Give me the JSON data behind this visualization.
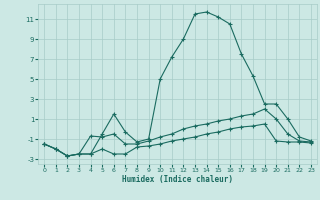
{
  "xlabel": "Humidex (Indice chaleur)",
  "bg_color": "#cce8e4",
  "grid_color": "#a8ccc8",
  "line_color": "#1a6b60",
  "xlim": [
    -0.5,
    23.5
  ],
  "ylim": [
    -3.5,
    12.5
  ],
  "yticks": [
    -3,
    -1,
    1,
    3,
    5,
    7,
    9,
    11
  ],
  "xticks": [
    0,
    1,
    2,
    3,
    4,
    5,
    6,
    7,
    8,
    9,
    10,
    11,
    12,
    13,
    14,
    15,
    16,
    17,
    18,
    19,
    20,
    21,
    22,
    23
  ],
  "line1_x": [
    0,
    1,
    2,
    3,
    4,
    5,
    6,
    7,
    8,
    9,
    10,
    11,
    12,
    13,
    14,
    15,
    16,
    17,
    18,
    19,
    20,
    21,
    22,
    23
  ],
  "line1_y": [
    -1.5,
    -2.0,
    -2.7,
    -2.5,
    -2.5,
    -0.5,
    1.5,
    -0.3,
    -1.3,
    -1.0,
    5.0,
    7.2,
    9.0,
    11.5,
    11.7,
    11.2,
    10.5,
    7.5,
    5.3,
    2.5,
    2.5,
    1.0,
    -0.8,
    -1.2
  ],
  "line2_x": [
    0,
    1,
    2,
    3,
    4,
    5,
    6,
    7,
    8,
    9,
    10,
    11,
    12,
    13,
    14,
    15,
    16,
    17,
    18,
    19,
    20,
    21,
    22,
    23
  ],
  "line2_y": [
    -1.5,
    -2.0,
    -2.7,
    -2.5,
    -0.7,
    -0.8,
    -0.5,
    -1.5,
    -1.5,
    -1.2,
    -0.8,
    -0.5,
    0.0,
    0.3,
    0.5,
    0.8,
    1.0,
    1.3,
    1.5,
    2.0,
    1.0,
    -0.5,
    -1.2,
    -1.3
  ],
  "line3_x": [
    0,
    1,
    2,
    3,
    4,
    5,
    6,
    7,
    8,
    9,
    10,
    11,
    12,
    13,
    14,
    15,
    16,
    17,
    18,
    19,
    20,
    21,
    22,
    23
  ],
  "line3_y": [
    -1.5,
    -2.0,
    -2.7,
    -2.5,
    -2.5,
    -2.0,
    -2.5,
    -2.5,
    -1.8,
    -1.7,
    -1.5,
    -1.2,
    -1.0,
    -0.8,
    -0.5,
    -0.3,
    0.0,
    0.2,
    0.3,
    0.5,
    -1.2,
    -1.3,
    -1.3,
    -1.4
  ]
}
